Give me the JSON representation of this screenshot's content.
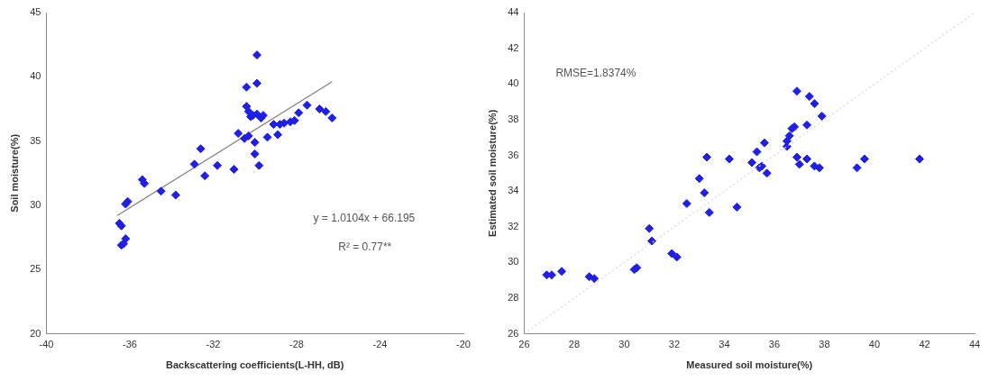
{
  "chart_data": [
    {
      "type": "scatter",
      "x_label": "Backscattering coefficients(L-HH, dB)",
      "y_label": "Soil moisture(%)",
      "xlim": [
        -40,
        -20
      ],
      "xticks": [
        -40,
        -36,
        -32,
        -28,
        -24,
        -20
      ],
      "ylim": [
        20,
        45
      ],
      "yticks": [
        20,
        25,
        30,
        35,
        40,
        45
      ],
      "grid": false,
      "annotations": [
        "y = 1.0104x + 66.195",
        "R² = 0.77**"
      ],
      "series": [
        {
          "type": "scatter",
          "color": "#1f1fe6",
          "marker": "diamond",
          "x": [
            -36.5,
            -36.4,
            -36.4,
            -36.3,
            -36.2,
            -36.2,
            -36.1,
            -35.4,
            -35.3,
            -34.5,
            -33.8,
            -32.9,
            -32.6,
            -32.4,
            -31.8,
            -31.0,
            -30.8,
            -30.5,
            -30.4,
            -30.4,
            -30.3,
            -30.3,
            -30.2,
            -30.1,
            -30.0,
            -30.0,
            -29.9,
            -29.9,
            -29.9,
            -29.8,
            -29.7,
            -29.6,
            -29.4,
            -29.1,
            -28.9,
            -28.8,
            -28.6,
            -28.3,
            -28.1,
            -27.9,
            -27.5,
            -26.9,
            -26.6,
            -26.3
          ],
          "values": [
            28.6,
            28.4,
            26.9,
            27.0,
            27.4,
            30.1,
            30.3,
            32.0,
            31.7,
            31.1,
            30.8,
            33.2,
            34.4,
            32.3,
            33.1,
            32.8,
            35.6,
            35.2,
            39.2,
            37.7,
            37.3,
            35.4,
            36.9,
            37.0,
            34.9,
            34.0,
            39.5,
            41.7,
            37.1,
            33.1,
            36.8,
            37.0,
            35.3,
            36.3,
            35.5,
            36.3,
            36.4,
            36.5,
            36.6,
            37.2,
            37.8,
            37.5,
            37.3,
            36.8
          ]
        },
        {
          "type": "line",
          "color": "#808080",
          "line_style": "solid",
          "x": [
            -36.6,
            -26.3
          ],
          "values": [
            29.21,
            39.62
          ]
        }
      ]
    },
    {
      "type": "scatter",
      "x_label": "Measured soil moisture(%)",
      "y_label": "Estimated soil moisture(%)",
      "xlim": [
        26,
        44
      ],
      "xticks": [
        26,
        28,
        30,
        32,
        34,
        36,
        38,
        40,
        42,
        44
      ],
      "ylim": [
        26,
        44
      ],
      "yticks": [
        26,
        28,
        30,
        32,
        34,
        36,
        38,
        40,
        42,
        44
      ],
      "grid": false,
      "annotations": [
        "RMSE=1.8374%"
      ],
      "series": [
        {
          "type": "line",
          "color": "#d9d9d9",
          "line_style": "dotted",
          "x": [
            26,
            44
          ],
          "values": [
            26,
            44
          ]
        },
        {
          "type": "scatter",
          "color": "#1f1fe6",
          "marker": "diamond",
          "x": [
            26.9,
            27.1,
            27.5,
            28.6,
            28.8,
            30.4,
            30.5,
            31.0,
            31.1,
            31.9,
            32.1,
            32.5,
            33.0,
            33.2,
            33.3,
            33.4,
            34.2,
            34.5,
            35.1,
            35.3,
            35.4,
            35.5,
            35.6,
            35.7,
            36.5,
            36.5,
            36.6,
            36.7,
            36.8,
            36.9,
            36.9,
            37.0,
            37.3,
            37.3,
            37.4,
            37.6,
            37.6,
            37.9,
            37.8,
            39.3,
            39.6,
            41.8
          ],
          "values": [
            29.3,
            29.3,
            29.5,
            29.2,
            29.1,
            29.6,
            29.7,
            31.9,
            31.2,
            30.5,
            30.3,
            33.3,
            34.7,
            33.9,
            35.9,
            32.8,
            35.8,
            33.1,
            35.6,
            36.2,
            35.3,
            35.4,
            36.7,
            35.0,
            36.8,
            36.5,
            37.1,
            37.5,
            37.6,
            39.6,
            35.9,
            35.5,
            37.7,
            35.8,
            39.3,
            38.9,
            35.4,
            38.2,
            35.3,
            35.3,
            35.8,
            35.8
          ]
        }
      ]
    }
  ]
}
